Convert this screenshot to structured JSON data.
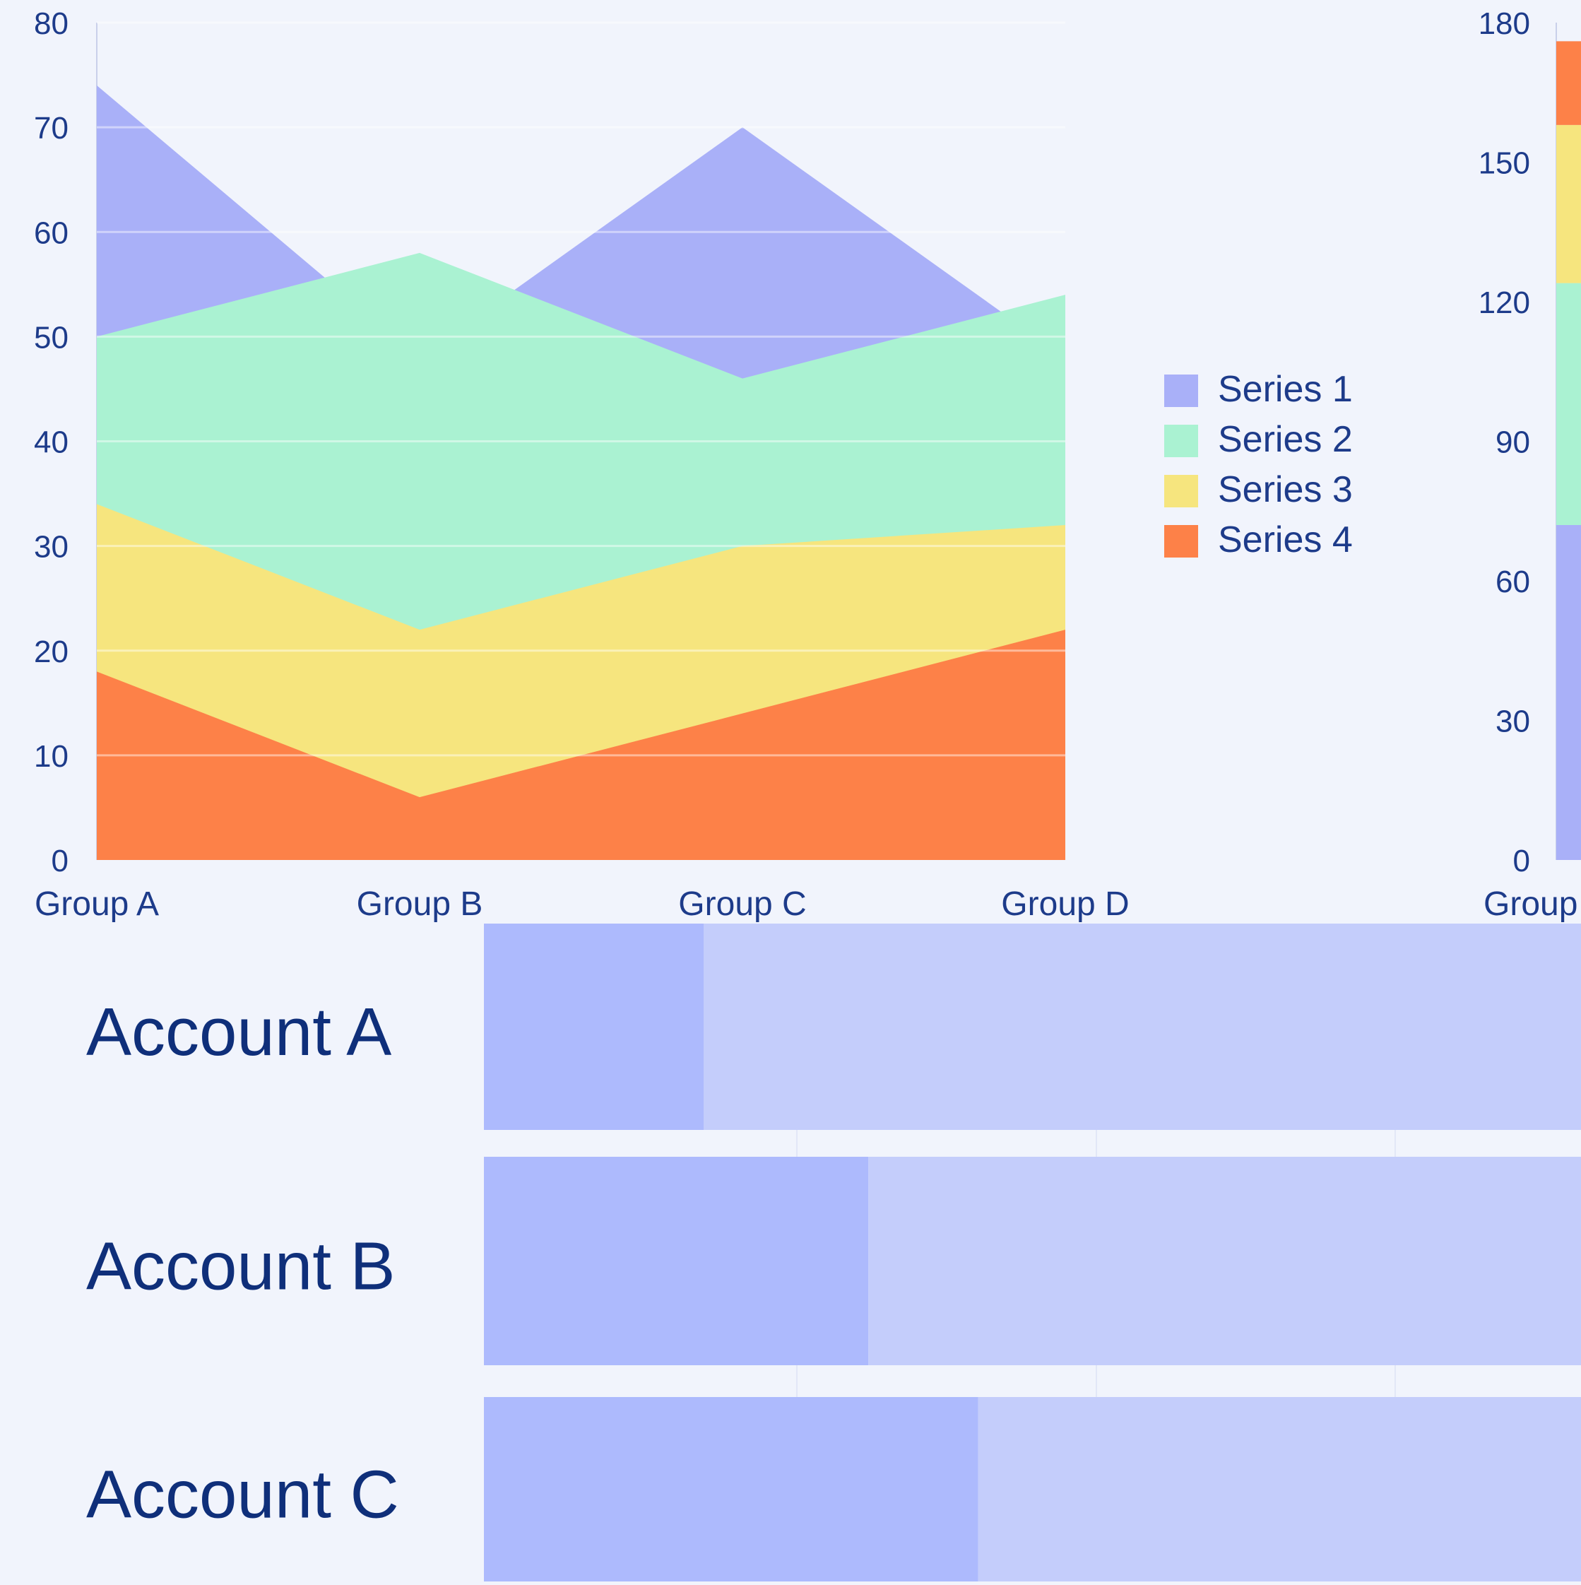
{
  "chart_data": [
    {
      "type": "area",
      "stacked": false,
      "categories": [
        "Group A",
        "Group B",
        "Group C",
        "Group D"
      ],
      "ylim": [
        0,
        80
      ],
      "yticks": [
        0,
        10,
        20,
        30,
        40,
        50,
        60,
        70,
        80
      ],
      "grid": true,
      "legend_position": "right",
      "series": [
        {
          "name": "Series 1",
          "values": [
            74,
            48,
            70,
            48
          ],
          "color": "#a9b0f8"
        },
        {
          "name": "Series 2",
          "values": [
            50,
            58,
            46,
            54
          ],
          "color": "#aaf2d2"
        },
        {
          "name": "Series 3",
          "values": [
            34,
            22,
            30,
            32
          ],
          "color": "#f6e57e"
        },
        {
          "name": "Series 4",
          "values": [
            18,
            6,
            14,
            22
          ],
          "color": "#fd8148"
        }
      ]
    },
    {
      "type": "area",
      "stacked": true,
      "categories": [
        "Group A"
      ],
      "visible_category_label": "Group",
      "ylim": [
        0,
        180
      ],
      "yticks": [
        0,
        30,
        60,
        90,
        120,
        150,
        180
      ],
      "series": [
        {
          "name": "Series 1",
          "values": [
            72
          ],
          "color": "#a9b0f8"
        },
        {
          "name": "Series 2",
          "values": [
            52
          ],
          "color": "#aaf2d2"
        },
        {
          "name": "Series 3",
          "values": [
            34
          ],
          "color": "#f6e57e"
        },
        {
          "name": "Series 4",
          "values": [
            18
          ],
          "color": "#fd8148"
        }
      ]
    },
    {
      "type": "bar",
      "orientation": "horizontal",
      "stacked": true,
      "categories": [
        "Account A",
        "Account B",
        "Account C"
      ],
      "series": [
        {
          "values": [
            20,
            35,
            45
          ],
          "color": "#adbafd"
        },
        {
          "values": [
            80,
            65,
            55
          ],
          "color": "#c4cdfb"
        }
      ]
    }
  ]
}
